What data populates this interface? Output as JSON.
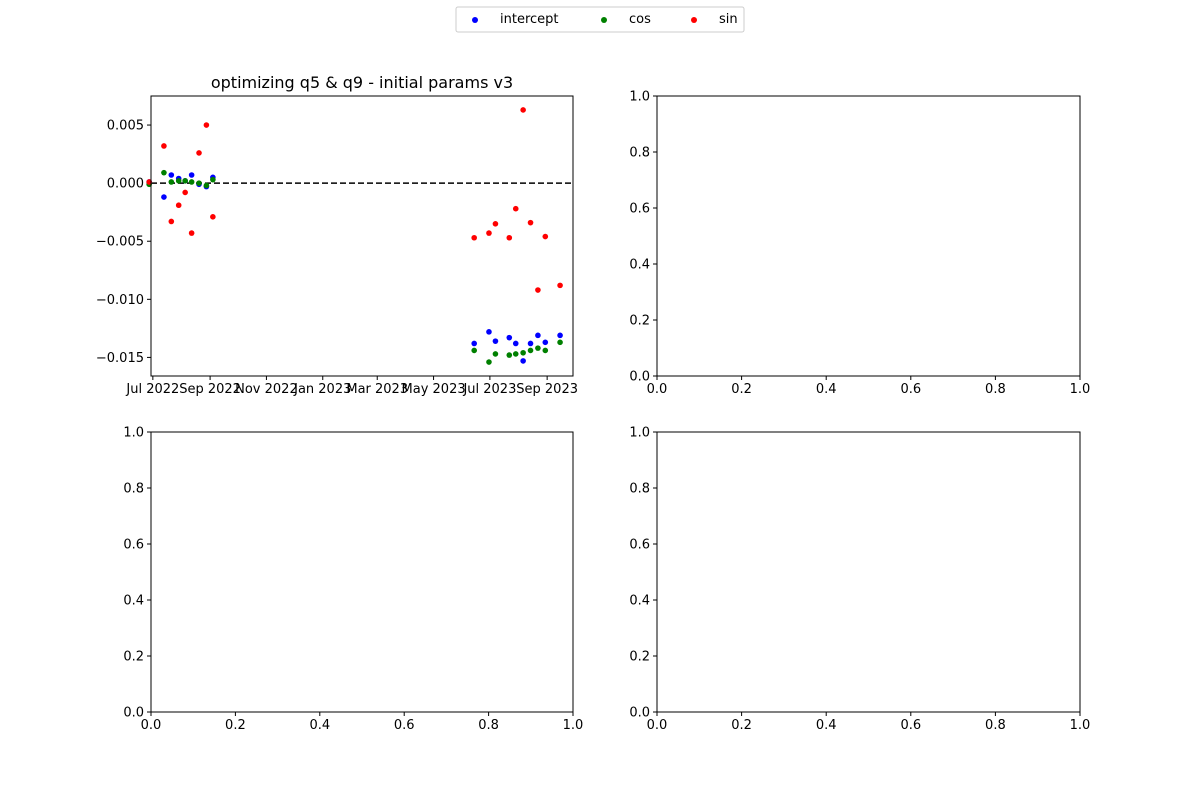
{
  "legend": {
    "placement": "upper-center",
    "entries": [
      {
        "label": "intercept",
        "color": "#0000ff"
      },
      {
        "label": "cos",
        "color": "#008000"
      },
      {
        "label": "sin",
        "color": "#ff0000"
      }
    ]
  },
  "chart_data": [
    {
      "type": "scatter",
      "title": "optimizing q5 & q9 - initial params v3",
      "xlabel": "",
      "ylabel": "",
      "x_axis": "date",
      "xlim": [
        "2022-06-29",
        "2023-09-29"
      ],
      "ylim": [
        -0.0166,
        0.0075
      ],
      "xticks": [
        {
          "date": "2022-07-01",
          "label": "Jul 2022"
        },
        {
          "date": "2022-09-01",
          "label": "Sep 2022"
        },
        {
          "date": "2022-11-01",
          "label": "Nov 2022"
        },
        {
          "date": "2023-01-01",
          "label": "Jan 2023"
        },
        {
          "date": "2023-03-01",
          "label": "Mar 2023"
        },
        {
          "date": "2023-05-01",
          "label": "May 2023"
        },
        {
          "date": "2023-07-01",
          "label": "Jul 2023"
        },
        {
          "date": "2023-09-01",
          "label": "Sep 2023"
        }
      ],
      "yticks": [
        {
          "value": 0.005,
          "label": "0.005"
        },
        {
          "value": 0.0,
          "label": "0.000"
        },
        {
          "value": -0.005,
          "label": "−0.005"
        },
        {
          "value": -0.01,
          "label": "−0.010"
        },
        {
          "value": -0.015,
          "label": "−0.015"
        }
      ],
      "reference_line": {
        "y": 0,
        "style": "dashed",
        "color": "#000000"
      },
      "grid": false,
      "series": [
        {
          "name": "intercept",
          "color": "#0000ff",
          "points": [
            {
              "x": "2022-06-27",
              "y": 0.0001
            },
            {
              "x": "2022-07-13",
              "y": -0.0012
            },
            {
              "x": "2022-07-21",
              "y": 0.0007
            },
            {
              "x": "2022-07-29",
              "y": 0.0004
            },
            {
              "x": "2022-08-05",
              "y": 0.0002
            },
            {
              "x": "2022-08-12",
              "y": 0.0007
            },
            {
              "x": "2022-08-20",
              "y": -0.0001
            },
            {
              "x": "2022-08-28",
              "y": -0.0003
            },
            {
              "x": "2022-09-04",
              "y": 0.0005
            },
            {
              "x": "2023-06-14",
              "y": -0.0138
            },
            {
              "x": "2023-06-30",
              "y": -0.0128
            },
            {
              "x": "2023-07-07",
              "y": -0.0136
            },
            {
              "x": "2023-07-22",
              "y": -0.0133
            },
            {
              "x": "2023-07-29",
              "y": -0.0138
            },
            {
              "x": "2023-08-06",
              "y": -0.0153
            },
            {
              "x": "2023-08-14",
              "y": -0.0138
            },
            {
              "x": "2023-08-22",
              "y": -0.0131
            },
            {
              "x": "2023-08-30",
              "y": -0.0137
            },
            {
              "x": "2023-09-15",
              "y": -0.0131
            }
          ]
        },
        {
          "name": "cos",
          "color": "#008000",
          "points": [
            {
              "x": "2022-06-27",
              "y": -0.0001
            },
            {
              "x": "2022-07-13",
              "y": 0.0009
            },
            {
              "x": "2022-07-21",
              "y": 0.0001
            },
            {
              "x": "2022-07-29",
              "y": 0.0002
            },
            {
              "x": "2022-08-05",
              "y": 0.0002
            },
            {
              "x": "2022-08-12",
              "y": 0.0001
            },
            {
              "x": "2022-08-20",
              "y": 0.0
            },
            {
              "x": "2022-08-28",
              "y": -0.0002
            },
            {
              "x": "2022-09-04",
              "y": 0.0003
            },
            {
              "x": "2023-06-14",
              "y": -0.0144
            },
            {
              "x": "2023-06-30",
              "y": -0.0154
            },
            {
              "x": "2023-07-07",
              "y": -0.0147
            },
            {
              "x": "2023-07-22",
              "y": -0.0148
            },
            {
              "x": "2023-07-29",
              "y": -0.0147
            },
            {
              "x": "2023-08-06",
              "y": -0.0146
            },
            {
              "x": "2023-08-14",
              "y": -0.0144
            },
            {
              "x": "2023-08-22",
              "y": -0.0142
            },
            {
              "x": "2023-08-30",
              "y": -0.0144
            },
            {
              "x": "2023-09-15",
              "y": -0.0137
            }
          ]
        },
        {
          "name": "sin",
          "color": "#ff0000",
          "points": [
            {
              "x": "2022-06-27",
              "y": 0.0001
            },
            {
              "x": "2022-07-13",
              "y": 0.0032
            },
            {
              "x": "2022-07-21",
              "y": -0.0033
            },
            {
              "x": "2022-07-29",
              "y": -0.0019
            },
            {
              "x": "2022-08-05",
              "y": -0.0008
            },
            {
              "x": "2022-08-12",
              "y": -0.0043
            },
            {
              "x": "2022-08-20",
              "y": 0.0026
            },
            {
              "x": "2022-08-28",
              "y": 0.005
            },
            {
              "x": "2022-09-04",
              "y": -0.0029
            },
            {
              "x": "2023-06-14",
              "y": -0.0047
            },
            {
              "x": "2023-06-30",
              "y": -0.0043
            },
            {
              "x": "2023-07-07",
              "y": -0.0035
            },
            {
              "x": "2023-07-22",
              "y": -0.0047
            },
            {
              "x": "2023-07-29",
              "y": -0.0022
            },
            {
              "x": "2023-08-06",
              "y": 0.0063
            },
            {
              "x": "2023-08-14",
              "y": -0.0034
            },
            {
              "x": "2023-08-22",
              "y": -0.0092
            },
            {
              "x": "2023-08-30",
              "y": -0.0046
            },
            {
              "x": "2023-09-15",
              "y": -0.0088
            }
          ]
        }
      ]
    },
    {
      "type": "scatter",
      "title": "",
      "xlim": [
        0,
        1
      ],
      "ylim": [
        0,
        1
      ],
      "xticks": [
        "0.0",
        "0.2",
        "0.4",
        "0.6",
        "0.8",
        "1.0"
      ],
      "yticks": [
        "0.0",
        "0.2",
        "0.4",
        "0.6",
        "0.8",
        "1.0"
      ],
      "series": []
    },
    {
      "type": "scatter",
      "title": "",
      "xlim": [
        0,
        1
      ],
      "ylim": [
        0,
        1
      ],
      "xticks": [
        "0.0",
        "0.2",
        "0.4",
        "0.6",
        "0.8",
        "1.0"
      ],
      "yticks": [
        "0.0",
        "0.2",
        "0.4",
        "0.6",
        "0.8",
        "1.0"
      ],
      "series": []
    },
    {
      "type": "scatter",
      "title": "",
      "xlim": [
        0,
        1
      ],
      "ylim": [
        0,
        1
      ],
      "xticks": [
        "0.0",
        "0.2",
        "0.4",
        "0.6",
        "0.8",
        "1.0"
      ],
      "yticks": [
        "0.0",
        "0.2",
        "0.4",
        "0.6",
        "0.8",
        "1.0"
      ],
      "series": []
    }
  ]
}
